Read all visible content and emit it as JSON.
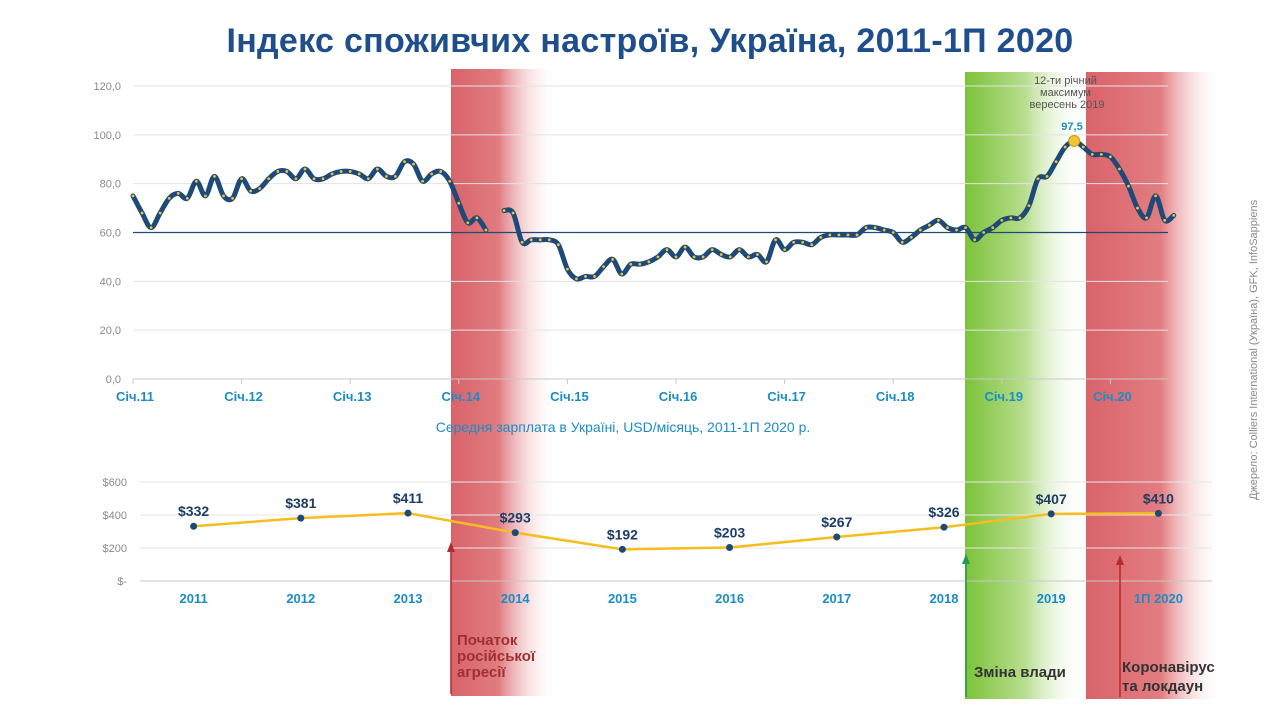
{
  "title": "Індекс споживчих настроїв, Україна, 2011-1П 2020",
  "source": "Джерело: Colliers International (Україна), GFK, InfoSappiens",
  "colors": {
    "index_line": "#1d4a78",
    "index_dots": "#f2c230",
    "salary_line": "#f5be1e",
    "salary_dots": "#1d4a78",
    "tick_blue": "#1a8dc6",
    "title": "#1f4e8c",
    "red_band": "#d9636a",
    "green_band": "#86c43e"
  },
  "annotations": {
    "aggression": "Початок російської агресії",
    "power_change": "Зміна влади",
    "covid": "Коронавірус та лок­даун",
    "peak_note": "12-ти річний максимум вересень 2019",
    "peak_value": "97,5"
  },
  "chart_data": [
    {
      "type": "line",
      "title": "Індекс споживчих настроїв, Україна, 2011-1П 2020",
      "ylim": [
        0,
        120
      ],
      "yticks": [
        "0,0",
        "20,0",
        "40,0",
        "60,0",
        "80,0",
        "100,0",
        "120,0"
      ],
      "reference_line": 60,
      "xtick_labels": [
        "Січ.11",
        "Січ.12",
        "Січ.13",
        "Січ.14",
        "Січ.15",
        "Січ.16",
        "Січ.17",
        "Січ.18",
        "Січ.19",
        "Січ.20"
      ],
      "series": [
        {
          "start": "2011-01",
          "values": [
            75,
            68,
            62,
            68,
            74,
            76,
            74,
            81,
            75,
            83,
            75,
            74,
            82,
            77,
            78,
            82,
            85,
            85,
            82,
            86,
            82,
            82,
            84,
            85,
            85,
            84,
            82,
            86,
            83,
            83,
            89,
            88,
            81,
            84,
            85,
            81,
            72,
            64,
            66,
            61
          ]
        },
        {
          "start": "2014-06",
          "values": [
            69,
            68,
            56,
            57,
            57,
            57,
            55,
            45,
            41,
            42,
            42,
            46,
            49,
            43,
            47,
            47,
            48,
            50,
            53,
            50,
            54,
            50,
            50,
            53,
            51,
            50,
            53,
            50,
            51,
            48,
            57,
            53,
            56,
            56,
            55,
            58,
            59,
            59,
            59,
            59,
            62,
            62,
            61,
            60,
            56,
            58,
            61,
            63,
            65,
            62,
            61,
            62,
            57,
            60,
            62,
            65,
            66,
            66,
            71,
            82,
            83,
            89,
            95,
            97.5,
            95,
            92,
            92,
            91,
            86,
            79,
            70,
            66,
            75,
            65,
            67
          ]
        }
      ],
      "highlight": {
        "x": "2019-09",
        "y": 97.5
      },
      "bands": [
        {
          "from": "2013-12",
          "to": "2014-10",
          "color": "red"
        },
        {
          "from": "2018-05",
          "to": "2019-06",
          "color": "green"
        },
        {
          "from": "2019-11",
          "to": "2020-12",
          "color": "red"
        }
      ]
    },
    {
      "type": "line",
      "title": "Середня зарплата в Україні, USD/місяць, 2011-1П 2020 р.",
      "ylim": [
        0,
        600
      ],
      "yticks": [
        "$-",
        "$200",
        "$400",
        "$600"
      ],
      "categories": [
        "2011",
        "2012",
        "2013",
        "2014",
        "2015",
        "2016",
        "2017",
        "2018",
        "2019",
        "1П 2020"
      ],
      "values": [
        332,
        381,
        411,
        293,
        192,
        203,
        267,
        326,
        407,
        410
      ],
      "labels": [
        "$332",
        "$381",
        "$411",
        "$293",
        "$192",
        "$203",
        "$267",
        "$326",
        "$407",
        "$410"
      ]
    }
  ]
}
